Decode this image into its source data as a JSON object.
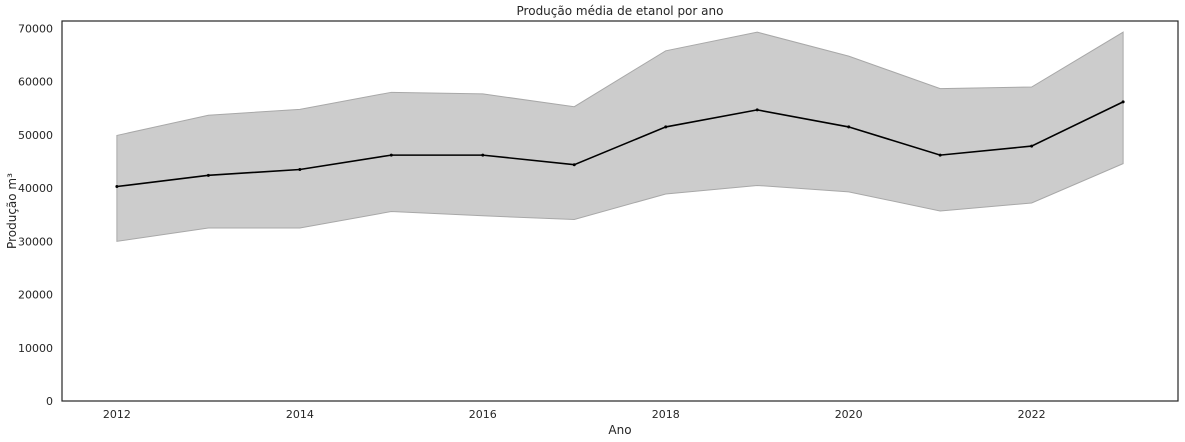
{
  "chart_data": {
    "type": "line",
    "title": "Produção média de etanol por ano",
    "xlabel": "Ano",
    "ylabel": "Produção m³",
    "x": [
      2012,
      2013,
      2014,
      2015,
      2016,
      2017,
      2018,
      2019,
      2020,
      2021,
      2022,
      2023
    ],
    "series": [
      {
        "values": [
          40300,
          42400,
          43500,
          46200,
          46200,
          44400,
          51500,
          54700,
          51500,
          46200,
          47900,
          56200
        ],
        "ci_lower": [
          30000,
          32500,
          32500,
          35600,
          34800,
          34100,
          38900,
          40500,
          39300,
          35700,
          37200,
          44600
        ],
        "ci_upper": [
          49900,
          53700,
          54800,
          58000,
          57700,
          55300,
          65800,
          69300,
          64800,
          58700,
          59000,
          69300
        ],
        "color": "#000000",
        "band_color": "#cccccc"
      }
    ],
    "xlim": [
      2011.4,
      2023.6
    ],
    "ylim": [
      0,
      71400
    ],
    "xticks": [
      "2012",
      "2014",
      "2016",
      "2018",
      "2020",
      "2022"
    ],
    "yticks": [
      "0",
      "10000",
      "20000",
      "30000",
      "40000",
      "50000",
      "60000",
      "70000"
    ],
    "grid": false,
    "legend": "none"
  }
}
